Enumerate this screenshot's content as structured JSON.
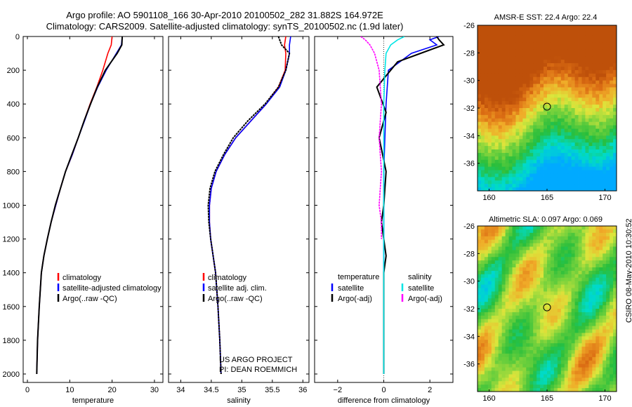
{
  "header": {
    "title_line1": "Argo profile: AO 5901108_166 30-Apr-2010 20100502_282 31.882S 164.972E",
    "title_line2": "Climatology: CARS2009. Satellite-adjusted climatology: synTS_20100502.nc (1.9d later)"
  },
  "side_stamp": "CSIRO 08-May-2010 10:30:52",
  "credit": {
    "line1": "US ARGO PROJECT",
    "line2": "PI: DEAN ROEMMICH"
  },
  "colors": {
    "climatology": "#ff0000",
    "satellite": "#0000ff",
    "argo": "#000000",
    "sat_salinity": "#00e5e5",
    "argo_salinity": "#ff00ff"
  },
  "chart_data": [
    {
      "type": "line",
      "id": "temperature",
      "xlabel": "temperature",
      "xlim": [
        -1,
        32
      ],
      "ylim": [
        2050,
        0
      ],
      "xticks": [
        0,
        10,
        20,
        30
      ],
      "yticks": [
        0,
        200,
        400,
        600,
        800,
        1000,
        1200,
        1400,
        1600,
        1800,
        2000
      ],
      "legend": [
        "climatology",
        "satellite-adjusted climatology",
        "Argo(..raw -QC)"
      ],
      "series": [
        {
          "name": "climatology",
          "color": "#ff0000",
          "x": [
            20.0,
            19.8,
            19.0,
            17.8,
            16.4,
            14.8,
            13.4,
            12.0,
            10.6,
            9.0,
            7.8,
            6.7,
            5.6,
            4.7,
            3.9,
            3.3,
            2.8,
            2.4,
            2.2
          ],
          "y": [
            0,
            50,
            100,
            200,
            300,
            400,
            500,
            600,
            700,
            800,
            900,
            1000,
            1100,
            1200,
            1300,
            1400,
            1600,
            1800,
            2000
          ]
        },
        {
          "name": "satellite-adjusted climatology",
          "color": "#0000ff",
          "x": [
            22.4,
            22.2,
            21.0,
            18.6,
            16.6,
            14.9,
            13.5,
            12.0,
            10.6,
            9.0,
            7.8,
            6.7,
            5.6,
            4.7,
            3.9,
            3.3,
            2.8,
            2.4,
            2.2
          ],
          "y": [
            0,
            50,
            100,
            200,
            300,
            400,
            500,
            600,
            700,
            800,
            900,
            1000,
            1100,
            1200,
            1300,
            1400,
            1600,
            1800,
            2000
          ]
        },
        {
          "name": "Argo(..raw -QC)",
          "color": "#000000",
          "x": [
            22.4,
            22.3,
            21.2,
            18.4,
            16.5,
            14.9,
            13.4,
            12.0,
            10.5,
            9.0,
            7.8,
            6.6,
            5.6,
            4.7,
            3.9,
            3.3,
            2.8,
            2.4,
            2.2
          ],
          "y": [
            0,
            50,
            100,
            200,
            300,
            400,
            500,
            600,
            700,
            800,
            900,
            1000,
            1100,
            1200,
            1300,
            1400,
            1600,
            1800,
            2000
          ]
        }
      ]
    },
    {
      "type": "line",
      "id": "salinity",
      "xlabel": "salinity",
      "xlim": [
        33.8,
        36.1
      ],
      "ylim": [
        2050,
        0
      ],
      "xticks": [
        34,
        34.5,
        35,
        35.5,
        36
      ],
      "xticklabels": [
        "34",
        "34.5",
        "35",
        "35.5",
        "36"
      ],
      "legend": [
        "climatology",
        "satellite adj. clim.",
        "Argo(..raw -QC)"
      ],
      "series": [
        {
          "name": "climatology",
          "color": "#ff0000",
          "x": [
            35.72,
            35.7,
            35.72,
            35.71,
            35.6,
            35.4,
            35.15,
            34.9,
            34.72,
            34.58,
            34.5,
            34.47,
            34.47,
            34.49,
            34.53,
            34.57,
            34.61,
            34.64,
            34.66
          ],
          "y": [
            0,
            50,
            100,
            200,
            300,
            400,
            500,
            600,
            700,
            800,
            900,
            1000,
            1100,
            1200,
            1300,
            1400,
            1600,
            1800,
            2000
          ]
        },
        {
          "name": "satellite adj. clim.",
          "color": "#0000ff",
          "x": [
            35.8,
            35.78,
            35.78,
            35.72,
            35.62,
            35.4,
            35.15,
            34.9,
            34.72,
            34.58,
            34.5,
            34.47,
            34.47,
            34.49,
            34.53,
            34.57,
            34.61,
            34.64,
            34.66
          ],
          "y": [
            0,
            50,
            100,
            200,
            300,
            400,
            500,
            600,
            700,
            800,
            900,
            1000,
            1100,
            1200,
            1300,
            1400,
            1600,
            1800,
            2000
          ]
        },
        {
          "name": "Argo(..raw -QC)",
          "color": "#000000",
          "x": [
            35.6,
            35.65,
            35.78,
            35.72,
            35.6,
            35.38,
            35.1,
            34.86,
            34.7,
            34.56,
            34.48,
            34.45,
            34.46,
            34.49,
            34.53,
            34.57,
            34.61,
            34.64,
            34.66
          ],
          "y": [
            0,
            50,
            100,
            200,
            300,
            400,
            500,
            600,
            700,
            800,
            900,
            1000,
            1100,
            1200,
            1300,
            1400,
            1600,
            1800,
            2000
          ]
        }
      ]
    },
    {
      "type": "line",
      "id": "difference",
      "xlabel": "difference from climatology",
      "xlim": [
        -3,
        3
      ],
      "ylim": [
        2050,
        0
      ],
      "xticks": [
        -2,
        0,
        2
      ],
      "xticklabels": [
        "−2",
        "0",
        "2"
      ],
      "legend_groups": {
        "temperature": [
          "satellite",
          "Argo(-adj)"
        ],
        "salinity": [
          "satellite",
          "Argo(-adj)"
        ]
      },
      "series": [
        {
          "name": "temperature satellite",
          "color": "#0000ff",
          "x": [
            2.4,
            2.0,
            2.3,
            1.2,
            0.2,
            0.1,
            0.05,
            0.0,
            0.0,
            0.0,
            0.0,
            0.0,
            0.0,
            0.0,
            0.0,
            0.0,
            0.0
          ],
          "y": [
            0,
            20,
            50,
            100,
            200,
            400,
            600,
            800,
            1000,
            1100,
            1200,
            1300,
            1400,
            1500,
            1600,
            1800,
            2000
          ]
        },
        {
          "name": "temperature Argo(-adj)",
          "color": "#000000",
          "x": [
            2.3,
            2.4,
            2.6,
            1.6,
            0.6,
            -0.3,
            0.1,
            -0.2,
            0.1,
            0.0,
            -0.1,
            0.0,
            0.1,
            0.0,
            0.0,
            0.0,
            0.0
          ],
          "y": [
            0,
            20,
            50,
            100,
            150,
            300,
            450,
            600,
            800,
            1000,
            1100,
            1200,
            1300,
            1400,
            1600,
            1800,
            2000
          ]
        },
        {
          "name": "salinity satellite",
          "color": "#00e5e5",
          "x": [
            0.9,
            0.6,
            0.3,
            0.1,
            0.05,
            0.0,
            0.0,
            0.0,
            0.0,
            0.0,
            0.0,
            0.0,
            0.0
          ],
          "y": [
            0,
            20,
            50,
            100,
            200,
            400,
            600,
            800,
            1000,
            1200,
            1400,
            1600,
            2000
          ]
        },
        {
          "name": "salinity Argo(-adj)",
          "color": "#ff00ff",
          "x": [
            -1.0,
            -0.8,
            -0.6,
            -0.4,
            -0.2,
            -0.1,
            -0.2,
            -0.1,
            -0.2,
            -0.1,
            -0.1
          ],
          "y": [
            0,
            20,
            50,
            100,
            200,
            400,
            600,
            800,
            1000,
            1100,
            1200
          ]
        }
      ]
    },
    {
      "type": "heatmap",
      "id": "sst_map",
      "title": "AMSR-E SST: 22.4  Argo: 22.4",
      "xlim": [
        159,
        171
      ],
      "ylim": [
        -38,
        -26
      ],
      "xticks": [
        160,
        165,
        170
      ],
      "yticks": [
        -26,
        -28,
        -30,
        -32,
        -34,
        -36
      ],
      "marker": {
        "lon": 165.0,
        "lat": -31.9
      }
    },
    {
      "type": "heatmap",
      "id": "sla_map",
      "title": "Altimetric SLA: 0.097  Argo: 0.069",
      "xlim": [
        159,
        171
      ],
      "ylim": [
        -38,
        -26
      ],
      "xticks": [
        160,
        165,
        170
      ],
      "yticks": [
        -26,
        -28,
        -30,
        -32,
        -34,
        -36
      ],
      "marker": {
        "lon": 165.0,
        "lat": -31.9
      }
    }
  ]
}
